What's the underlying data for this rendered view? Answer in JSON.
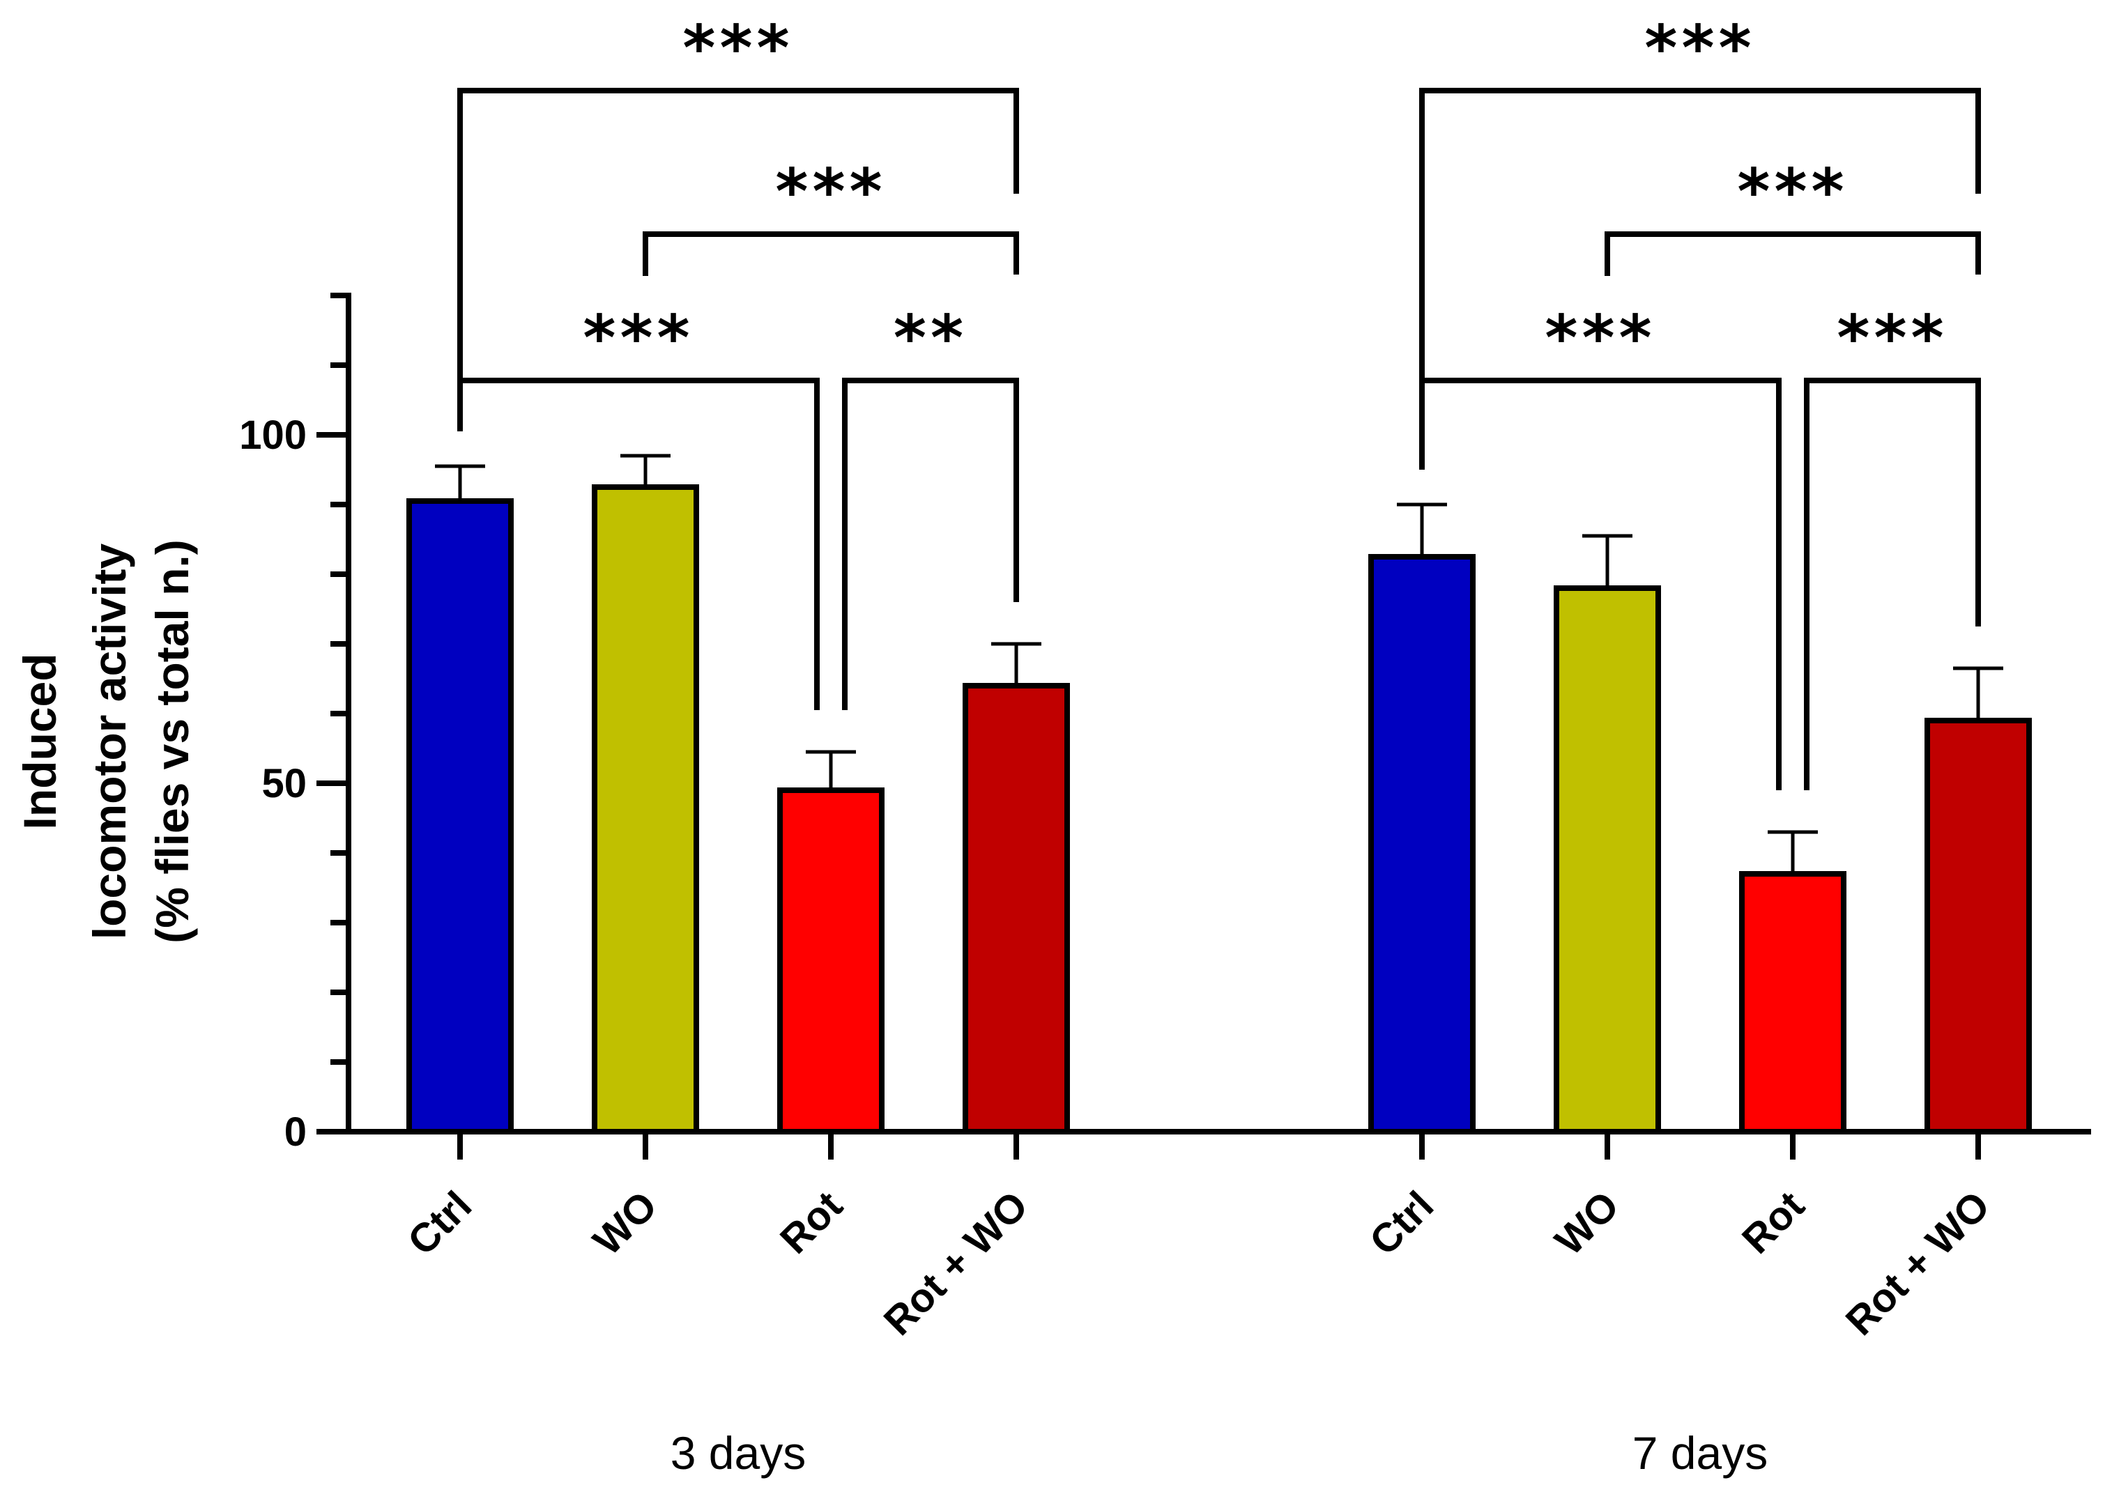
{
  "chart_data": {
    "type": "bar",
    "title": "",
    "ylabel": [
      "Induced",
      "locomotor activity",
      "(% flies vs total n.)"
    ],
    "xlabel": "",
    "ylim": [
      0,
      120
    ],
    "yticks_major": [
      0,
      50,
      100
    ],
    "yticks_minor": [
      10,
      20,
      30,
      40,
      60,
      70,
      80,
      90,
      110,
      120
    ],
    "categories": [
      "Ctrl",
      "WO",
      "Rot",
      "Rot + WO"
    ],
    "colors": [
      "#0000c0",
      "#c0c000",
      "#ff0000",
      "#c00000"
    ],
    "groups": [
      {
        "label": "3 days",
        "values": [
          90.5,
          92.5,
          49,
          64
        ],
        "errors": [
          5,
          4.5,
          5.5,
          6
        ],
        "comparisons": [
          {
            "from": 0,
            "to": 3,
            "stars": "***"
          },
          {
            "from": 1,
            "to": 3,
            "stars": "***"
          },
          {
            "from": 0,
            "to": 2,
            "stars": "***"
          },
          {
            "from": 2,
            "to": 3,
            "stars": "**"
          }
        ]
      },
      {
        "label": "7 days",
        "values": [
          82.5,
          78,
          37,
          59
        ],
        "errors": [
          7.5,
          7.5,
          6,
          7.5
        ],
        "comparisons": [
          {
            "from": 0,
            "to": 3,
            "stars": "***"
          },
          {
            "from": 1,
            "to": 3,
            "stars": "***"
          },
          {
            "from": 0,
            "to": 2,
            "stars": "***"
          },
          {
            "from": 2,
            "to": 3,
            "stars": "***"
          }
        ]
      }
    ]
  }
}
